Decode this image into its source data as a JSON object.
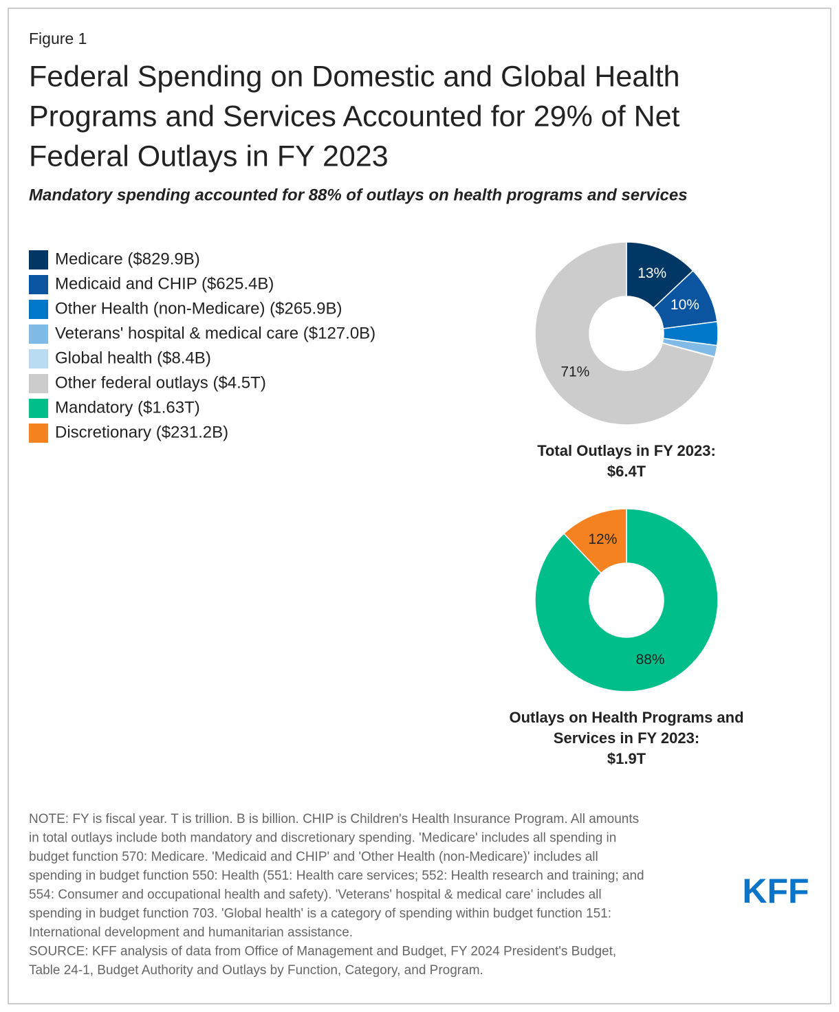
{
  "figure_label": "Figure 1",
  "title": [
    "Federal Spending on Domestic and Global Health",
    "Programs and Services Accounted for 29% of Net",
    "Federal Outlays in FY 2023"
  ],
  "subtitle": "Mandatory spending accounted for 88% of outlays on health programs and services",
  "chart_data": [
    {
      "type": "pie",
      "categories": [
        "Medicare ($829.9B)",
        "Medicaid and CHIP ($625.4B)",
        "Other Health (non-Medicare) ($265.9B)",
        "Veterans' hospital & medical care ($127.0B)",
        "Global health ($8.4B)",
        "Other federal outlays ($4.5T)"
      ],
      "values": [
        13,
        10,
        4.2,
        2,
        0.1,
        71
      ],
      "value_labels": [
        "13%",
        "10%",
        null,
        null,
        null,
        "71%"
      ],
      "colors": [
        "#003764",
        "#0b54a0",
        "#0077c8",
        "#7fbbe6",
        "#b9dcf3",
        "#cccccc"
      ],
      "caption": [
        "Total Outlays in FY 2023:",
        "$6.4T"
      ]
    },
    {
      "type": "pie",
      "categories": [
        "Mandatory ($1.63T)",
        "Discretionary ($231.2B)"
      ],
      "values": [
        88,
        12
      ],
      "value_labels": [
        "88%",
        "12%"
      ],
      "colors": [
        "#00be8a",
        "#f58220"
      ],
      "caption": [
        "Outlays on Health Programs and",
        "Services in FY 2023:",
        "$1.9T"
      ]
    }
  ],
  "note": [
    "NOTE: FY is fiscal year. T is trillion. B is billion. CHIP is Children's Health Insurance Program. All amounts",
    "in total outlays include both mandatory and discretionary spending. 'Medicare' includes all spending in",
    "budget function 570: Medicare. 'Medicaid and CHIP' and 'Other Health (non-Medicare)' includes all",
    "spending in budget function 550: Health (551: Health care services; 552: Health research and training; and",
    "554: Consumer and occupational health and safety). 'Veterans' hospital & medical care' includes all",
    "spending in budget function 703. 'Global health' is a category of spending within budget function 151:",
    "International development and humanitarian assistance."
  ],
  "source": [
    "SOURCE: KFF analysis of data from Office of Management and Budget, FY 2024 President's Budget,",
    "Table 24-1, Budget Authority and Outlays by Function, Category, and Program."
  ],
  "logo": "KFF"
}
